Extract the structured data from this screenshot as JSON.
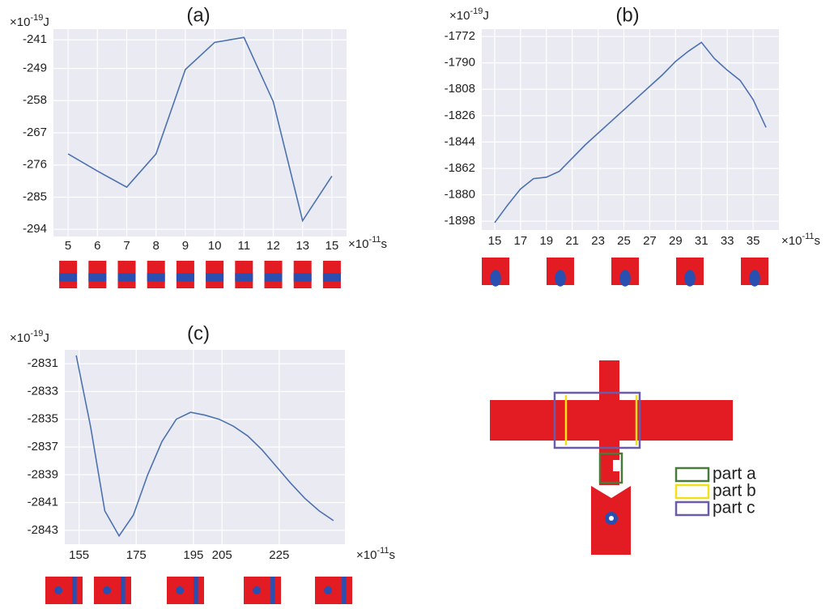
{
  "chart_data": [
    {
      "type": "line",
      "title": "(a)",
      "ylabel": {
        "prefix": "×10",
        "exponent": "-19",
        "unit": "J"
      },
      "xlabel": {
        "prefix": "×10",
        "exponent": "-11",
        "unit": "s"
      },
      "categories": [
        "5",
        "6",
        "7",
        "8",
        "9",
        "10",
        "11",
        "12",
        "13",
        "15"
      ],
      "values": [
        -272.9,
        -277.7,
        -282.2,
        -272.9,
        -249.3,
        -241.7,
        -240.3,
        -258.3,
        -291.6,
        -279.1
      ],
      "color": "#4c72b0",
      "ylim": [
        -296,
        -238
      ],
      "yticks": [
        -294,
        -285,
        -276,
        -267,
        -258,
        -249,
        -241
      ],
      "grid": true
    },
    {
      "type": "line",
      "title": "(b)",
      "ylabel": {
        "prefix": "×10",
        "exponent": "-19",
        "unit": "J"
      },
      "xlabel": {
        "prefix": "×10",
        "exponent": "-11",
        "unit": "s"
      },
      "x": [
        15,
        16,
        17,
        18,
        19,
        20,
        21,
        22,
        23,
        24,
        25,
        26,
        27,
        28,
        29,
        30,
        31,
        32,
        33,
        34,
        35,
        36
      ],
      "values": [
        -1899,
        -1887,
        -1876,
        -1869,
        -1868,
        -1864,
        -1855,
        -1846,
        -1838,
        -1830,
        -1822,
        -1814,
        -1806,
        -1798,
        -1789,
        -1782,
        -1776,
        -1787,
        -1795,
        -1802,
        -1815,
        -1834
      ],
      "color": "#4c72b0",
      "xlim": [
        14,
        37
      ],
      "xticks": [
        15,
        17,
        19,
        21,
        23,
        25,
        27,
        29,
        31,
        33,
        35
      ],
      "ylim": [
        -1904,
        -1767
      ],
      "yticks": [
        -1898,
        -1880,
        -1862,
        -1844,
        -1826,
        -1808,
        -1790,
        -1772
      ],
      "grid": true
    },
    {
      "type": "line",
      "title": "(c)",
      "ylabel": {
        "prefix": "×10",
        "exponent": "-19",
        "unit": "J"
      },
      "xlabel": {
        "prefix": "×10",
        "exponent": "-11",
        "unit": "s"
      },
      "x": [
        154,
        159,
        164,
        169,
        174,
        179,
        184,
        189,
        194,
        199,
        204,
        209,
        214,
        219,
        224,
        229,
        234,
        239,
        244
      ],
      "values": [
        -2830.4,
        -2835.5,
        -2841.6,
        -2843.4,
        -2841.9,
        -2839,
        -2836.6,
        -2835,
        -2834.5,
        -2834.7,
        -2835,
        -2835.5,
        -2836.2,
        -2837.2,
        -2838.4,
        -2839.6,
        -2840.7,
        -2841.6,
        -2842.3
      ],
      "color": "#4c72b0",
      "xlim": [
        150,
        248
      ],
      "xticks": [
        155,
        175,
        195,
        205,
        225
      ],
      "ylim": [
        -2844,
        -2830
      ],
      "yticks": [
        -2843,
        -2841,
        -2839,
        -2837,
        -2835,
        -2833,
        -2831
      ],
      "grid": true
    }
  ],
  "diagram": {
    "legend": [
      {
        "label": "part a",
        "color": "#4a7a3c"
      },
      {
        "label": "part b",
        "color": "#f2e01a"
      },
      {
        "label": "part c",
        "color": "#6a5ca8"
      }
    ]
  }
}
